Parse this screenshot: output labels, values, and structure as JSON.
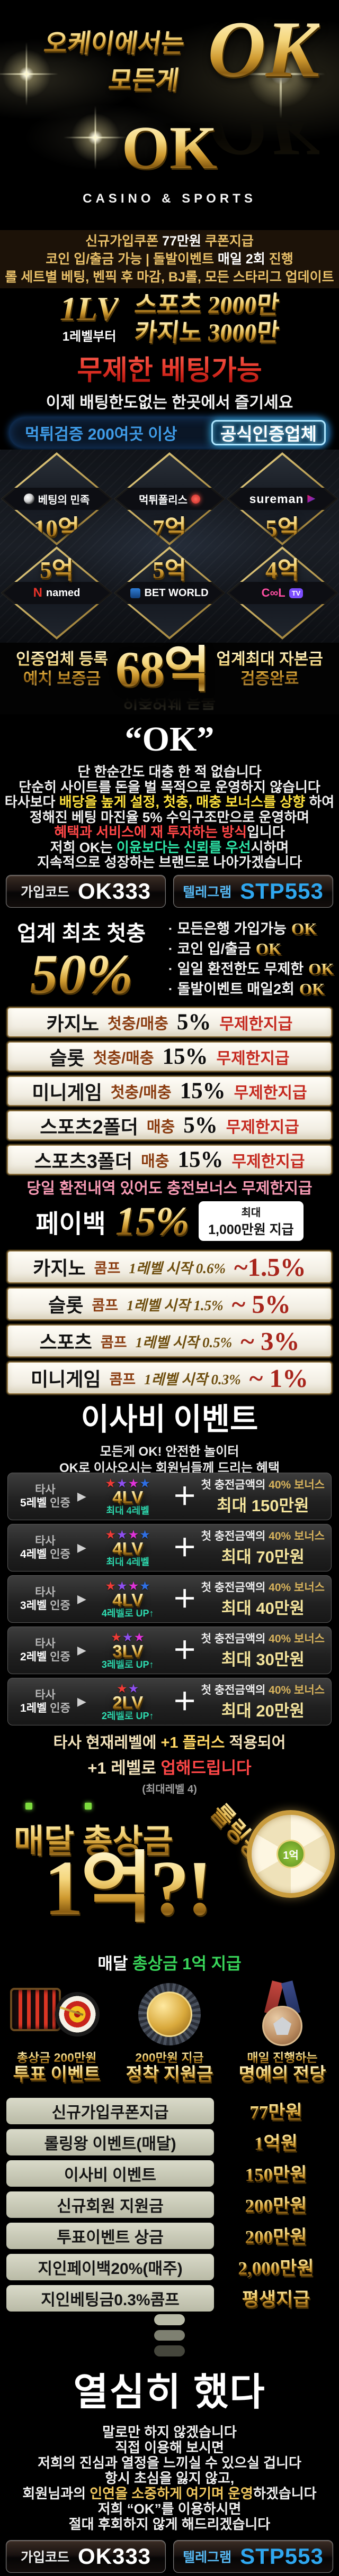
{
  "hero": {
    "tagline_line1": "오케이에서는",
    "tagline_line2": "모든게",
    "tagline_ok": "OK",
    "logo": "OK",
    "logo_sub": "CASINO & SPORTS"
  },
  "notice": {
    "lines": [
      [
        [
          "신규가입쿠폰 ",
          ""
        ],
        [
          "77만원",
          "w"
        ],
        [
          " 쿠폰지급",
          ""
        ]
      ],
      [
        [
          "코인 입/출금 가능 | 돌발이벤트 ",
          ""
        ],
        [
          "매일 2회",
          "w"
        ],
        [
          " 진행",
          ""
        ]
      ],
      [
        [
          "롤 세트별 베팅, 벤픽 후 마감, BJ롤, 모든 스타리그 업데이트",
          ""
        ]
      ]
    ]
  },
  "level_banner": {
    "lv": "1LV",
    "lv_sub": "1레벨부터",
    "line1": "스포츠 2000만",
    "line2": "카지노 3000만"
  },
  "unlimited_title": "무제한 베팅가능",
  "unlimited_sub": "이제 배팅한도없는 한곳에서 즐기세요",
  "verify": {
    "left": "먹튀검증 200여곳 이상",
    "badge": "공식인증업체"
  },
  "sites": {
    "row1": [
      {
        "name": "베팅의 민족",
        "amount": "10억",
        "logo": "minjok"
      },
      {
        "name": "먹튀폴리스",
        "amount": "7억",
        "logo": "police"
      },
      {
        "name": "sureman",
        "amount": "5억",
        "logo": "sureman"
      }
    ],
    "row2": [
      {
        "name": "named",
        "amount": "5억",
        "logo": "named"
      },
      {
        "name": "BET WORLD",
        "amount": "5억",
        "logo": "betworld"
      },
      {
        "name": "C∞L",
        "amount": "4억",
        "logo": "cooltv"
      }
    ]
  },
  "deposit_banner": {
    "left1": "인증업체 등록",
    "left2": "예치 보증금",
    "amount": "68억",
    "right1": "업계최대 자본금",
    "right2": "검증완료"
  },
  "quote": "“OK”",
  "mission": {
    "lines": [
      [
        [
          "단 한순간도 대충 한 적 없습니다",
          ""
        ]
      ],
      [
        [
          "단순히 사이트를 돈을 벌 목적으로 운영하지 않습니다",
          ""
        ]
      ],
      [
        [
          "타사보다 ",
          ""
        ],
        [
          "배당을 높게 설정, 첫충, 매충 보너스를 상향",
          "y"
        ],
        [
          " 하여",
          ""
        ]
      ],
      [
        [
          "정해진 베팅 마진율 5% 수익구조만으로 운영하며",
          ""
        ]
      ],
      [
        [
          "혜택과 서비스에 재 투자하는 방식",
          "r"
        ],
        [
          "입니다",
          ""
        ]
      ],
      [
        [
          "저희 OK는 ",
          ""
        ],
        [
          "이윤보다는 신뢰를 우선",
          "g"
        ],
        [
          "시하며",
          ""
        ]
      ],
      [
        [
          "지속적으로 성장하는 브랜드로 나아가겠습니다",
          ""
        ]
      ]
    ]
  },
  "codes": {
    "signup_label": "가입코드",
    "signup_value": "OK333",
    "telegram_label": "텔레그램",
    "telegram_value": "STP553"
  },
  "first_charge": {
    "title": "업계 최초 첫충",
    "percent": "50%",
    "ok": "OK",
    "bullets": [
      "모든은행 가입가능",
      "코인 입/출금",
      "일일 환전한도 무제한",
      "돌발이벤트 매일2회"
    ]
  },
  "bonus_rows": [
    {
      "game": "카지노",
      "type": "첫충/매충",
      "percent": "5%",
      "note": "무제한지급"
    },
    {
      "game": "슬롯",
      "type": "첫충/매충",
      "percent": "15%",
      "note": "무제한지급"
    },
    {
      "game": "미니게임",
      "type": "첫충/매충",
      "percent": "15%",
      "note": "무제한지급"
    },
    {
      "game": "스포츠2폴더",
      "type": "매충",
      "percent": "5%",
      "note": "무제한지급"
    },
    {
      "game": "스포츠3폴더",
      "type": "매충",
      "percent": "15%",
      "note": "무제한지급"
    }
  ],
  "bonus_note": "당일 환전내역 있어도 충전보너스 무제한지급",
  "payback": {
    "label": "페이백",
    "percent": "15%",
    "box_line1": "최대",
    "box_line2": "1,000만원 지급"
  },
  "comp_rows": [
    {
      "game": "카지노",
      "comp": "콤프",
      "desc": "1레벨 시작 0.6%",
      "range": "~1.5%"
    },
    {
      "game": "슬롯",
      "comp": "콤프",
      "desc": "1레벨 시작 1.5%",
      "range": "~ 5%"
    },
    {
      "game": "스포츠",
      "comp": "콤프",
      "desc": "1레벨 시작 0.5%",
      "range": "~ 3%"
    },
    {
      "game": "미니게임",
      "comp": "콤프",
      "desc": "1레벨 시작 0.3%",
      "range": "~ 1%"
    }
  ],
  "moving": {
    "title": "이사비 이벤트",
    "sub1": "모든게 OK! 안전한 놀이터",
    "sub2": "OK로 이사오시는 회원님들께 드리는 혜택",
    "tiers": [
      {
        "from1": "타사",
        "from2": "5레벨",
        "from3": " 인증",
        "stars": 4,
        "lv": "4LV",
        "note": "최대 4레벨",
        "bonus1": "첫 충전금액의 ",
        "bonus_hl": "40% 보너스",
        "max": "최대 150만원"
      },
      {
        "from1": "타사",
        "from2": "4레벨",
        "from3": " 인증",
        "stars": 4,
        "lv": "4LV",
        "note": "최대 4레벨",
        "bonus1": "첫 충전금액의 ",
        "bonus_hl": "40% 보너스",
        "max": "최대 70만원"
      },
      {
        "from1": "타사",
        "from2": "3레벨",
        "from3": " 인증",
        "stars": 4,
        "lv": "4LV",
        "note": "4레벨로 UP↑",
        "bonus1": "첫 충전금액의 ",
        "bonus_hl": "40% 보너스",
        "max": "최대 40만원"
      },
      {
        "from1": "타사",
        "from2": "2레벨",
        "from3": " 인증",
        "stars": 3,
        "lv": "3LV",
        "note": "3레벨로 UP↑",
        "bonus1": "첫 충전금액의 ",
        "bonus_hl": "40% 보너스",
        "max": "최대 30만원"
      },
      {
        "from1": "타사",
        "from2": "1레벨",
        "from3": " 인증",
        "stars": 2,
        "lv": "2LV",
        "note": "2레벨로 UP↑",
        "bonus1": "첫 충전금액의 ",
        "bonus_hl": "40% 보너스",
        "max": "최대 20만원"
      }
    ],
    "plus1": [
      [
        "타사 현재레벨에 ",
        ""
      ],
      [
        "+1 플러스",
        "plus"
      ],
      [
        " 적용되어",
        ""
      ]
    ],
    "plus2": [
      [
        "+1 레벨로 ",
        ""
      ],
      [
        "업해드립니다",
        "r"
      ]
    ],
    "plus3": "(최대레벨 4)"
  },
  "rolling": {
    "title": "매달 총상금",
    "king": "롤링왕",
    "amount": "1억?!",
    "wheel_label": "1억",
    "sub": [
      [
        "매달 ",
        "w"
      ],
      [
        "총상금 1억 지급",
        "g2"
      ]
    ]
  },
  "events": [
    {
      "icon": "dart",
      "cap1": "총상금 200만원",
      "cap2": "투표 이벤트"
    },
    {
      "icon": "coin",
      "cap1": "200만원 지급",
      "cap2": "정착 지원금"
    },
    {
      "icon": "medal",
      "cap1": "매일 진행하는",
      "cap2": "명예의 전당"
    }
  ],
  "summary_rows": [
    {
      "label": "신규가입쿠폰지급",
      "value": "77만원"
    },
    {
      "label": "롤링왕 이벤트(매달)",
      "value": "1억원"
    },
    {
      "label": "이사비 이벤트",
      "value": "150만원"
    },
    {
      "label": "신규회원 지원금",
      "value": "200만원"
    },
    {
      "label": "투표이벤트 상금",
      "value": "200만원"
    },
    {
      "label": "지인페이백20%(매주)",
      "value": "2,000만원"
    },
    {
      "label": "지인베팅금0.3%콤프",
      "value": "평생지급"
    }
  ],
  "hard_work": "열심히 했다",
  "closing": {
    "lines": [
      [
        [
          "말로만 하지 않겠습니다",
          ""
        ]
      ],
      [
        [
          "직접 이용해 보시면",
          ""
        ]
      ],
      [
        [
          "저희의 진심과 열정을 느끼실 수 있으실 겁니다",
          ""
        ]
      ],
      [
        [
          "항시 초심을 잃지 않고,",
          ""
        ]
      ],
      [
        [
          "회원님과의 ",
          ""
        ],
        [
          "인연을 소중하게 여기며 운영",
          "gold"
        ],
        [
          "하겠습니다",
          ""
        ]
      ],
      [
        [
          "저희 “OK”를 이용하시면",
          ""
        ]
      ],
      [
        [
          "절대 후회하지 않게 해드리겠습니다",
          ""
        ]
      ]
    ]
  }
}
